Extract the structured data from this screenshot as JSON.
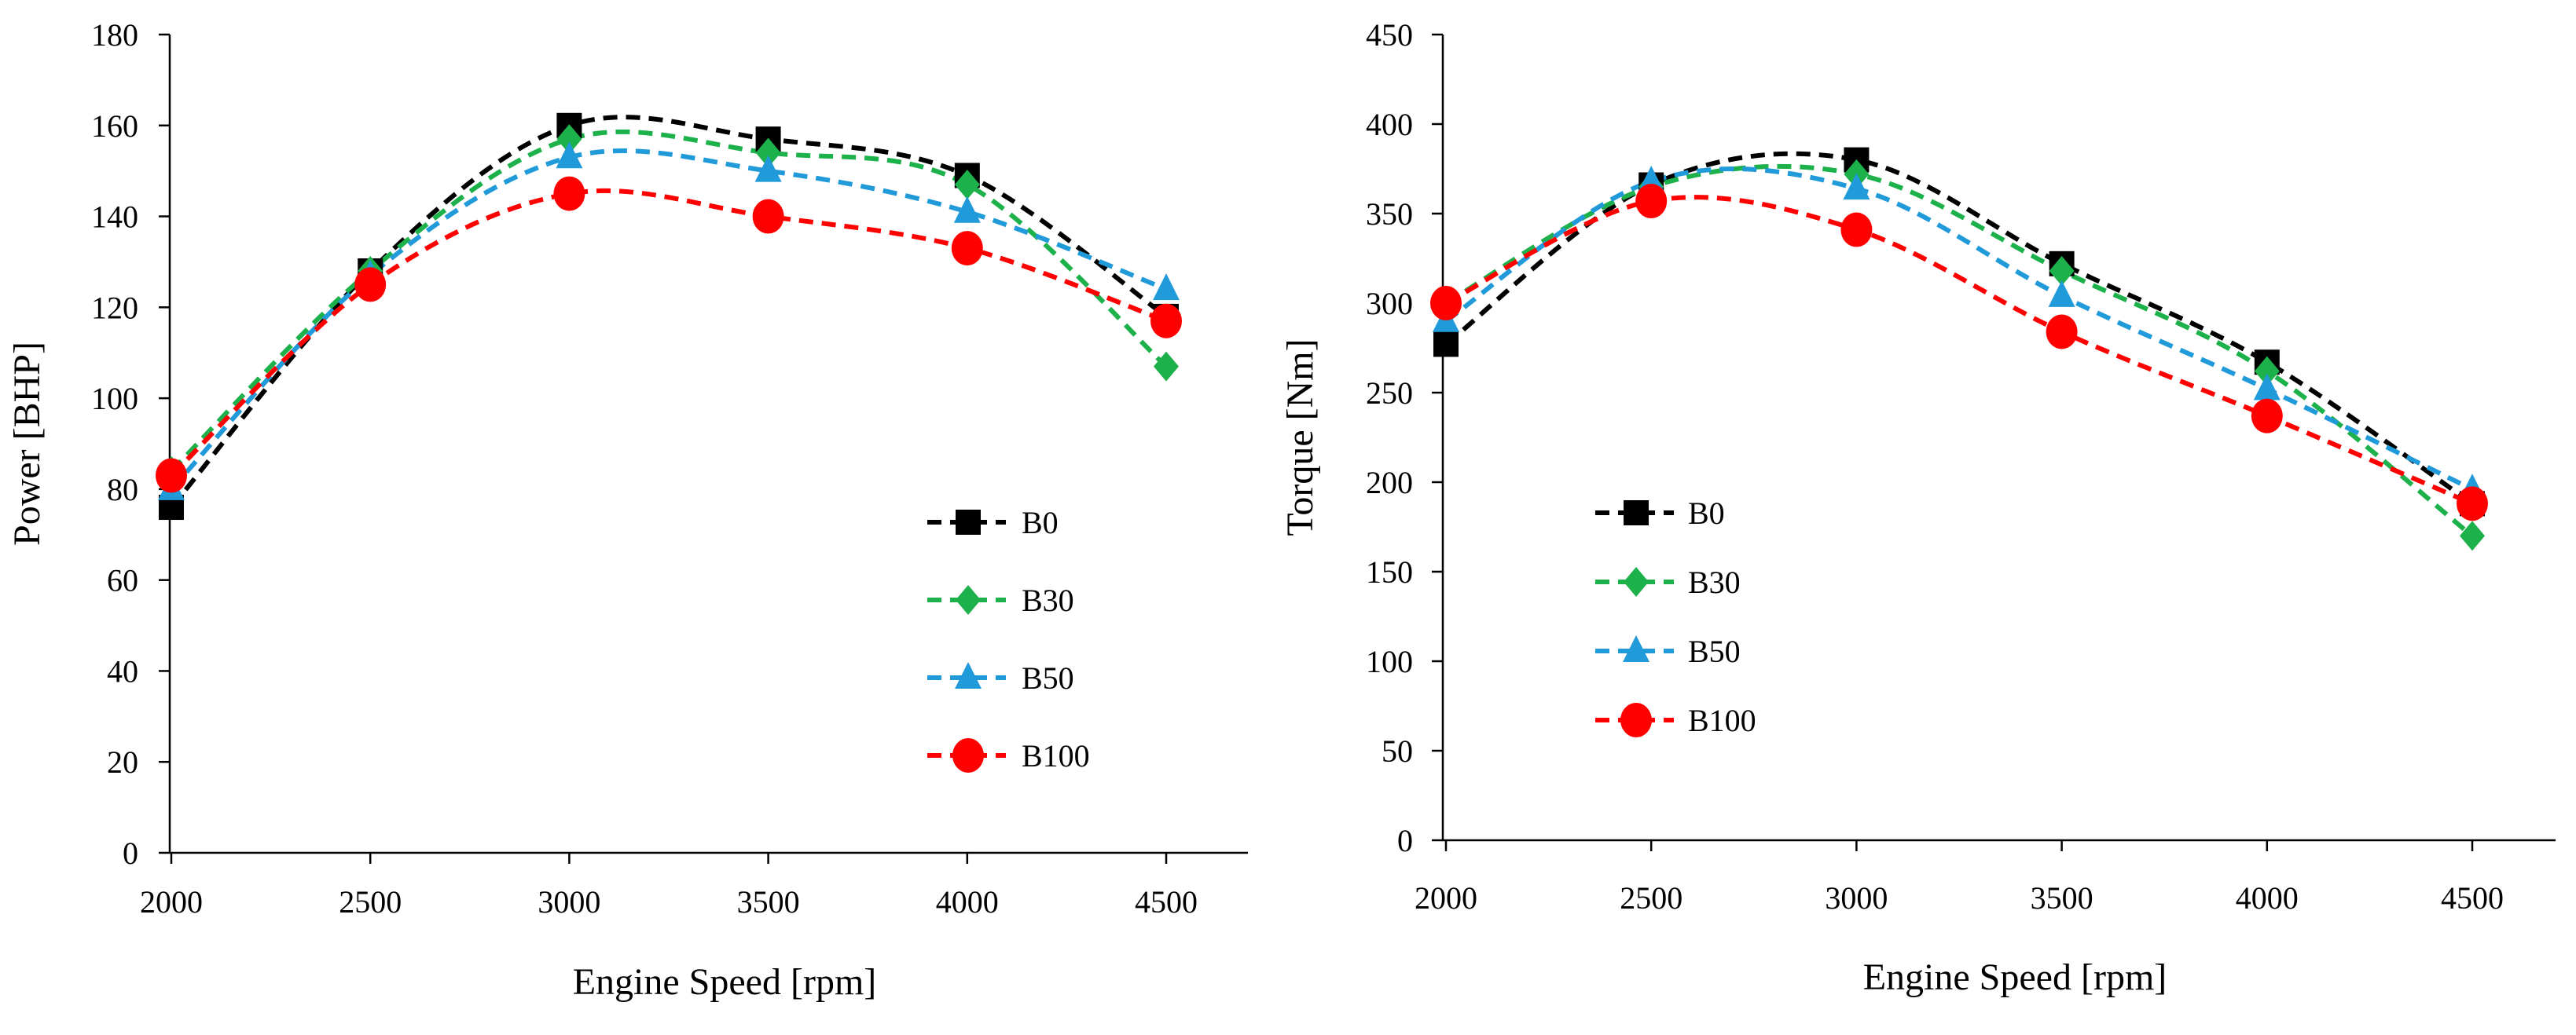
{
  "chart_data": [
    {
      "type": "line",
      "title": "",
      "xlabel": "Engine Speed [rpm]",
      "ylabel": "Power [BHP]",
      "x": [
        2000,
        2500,
        3000,
        3500,
        4000,
        4500
      ],
      "xticks": [
        2000,
        2500,
        3000,
        3500,
        4000,
        4500
      ],
      "xlim": [
        2000,
        4700
      ],
      "ylim": [
        0,
        180
      ],
      "yticks": [
        0,
        20,
        40,
        60,
        80,
        100,
        120,
        140,
        160,
        180
      ],
      "legend_position": "lower-right",
      "series": [
        {
          "name": "B0",
          "color": "#000000",
          "marker": "square",
          "values": [
            76,
            128,
            160,
            157,
            149,
            118
          ]
        },
        {
          "name": "B30",
          "color": "#1db14b",
          "marker": "diamond",
          "values": [
            84,
            128,
            157,
            154,
            147,
            107
          ]
        },
        {
          "name": "B50",
          "color": "#219ad9",
          "marker": "triangle",
          "values": [
            80,
            127,
            153,
            150,
            141,
            124
          ]
        },
        {
          "name": "B100",
          "color": "#ff0000",
          "marker": "circle",
          "values": [
            83,
            125,
            145,
            140,
            133,
            117
          ]
        }
      ]
    },
    {
      "type": "line",
      "title": "",
      "xlabel": "Engine Speed [rpm]",
      "ylabel": "Torque [Nm]",
      "x": [
        2000,
        2500,
        3000,
        3500,
        4000,
        4500
      ],
      "xticks": [
        2000,
        2500,
        3000,
        3500,
        4000,
        4500
      ],
      "xlim": [
        2000,
        4700
      ],
      "ylim": [
        0,
        450
      ],
      "yticks": [
        0,
        50,
        100,
        150,
        200,
        250,
        300,
        350,
        400,
        450
      ],
      "legend_position": "lower-left",
      "series": [
        {
          "name": "B0",
          "color": "#000000",
          "marker": "square",
          "values": [
            277,
            366,
            380,
            322,
            267,
            188
          ]
        },
        {
          "name": "B30",
          "color": "#1db14b",
          "marker": "diamond",
          "values": [
            300,
            365,
            372,
            318,
            262,
            170
          ]
        },
        {
          "name": "B50",
          "color": "#219ad9",
          "marker": "triangle",
          "values": [
            290,
            368,
            364,
            304,
            252,
            196
          ]
        },
        {
          "name": "B100",
          "color": "#ff0000",
          "marker": "circle",
          "values": [
            300,
            357,
            341,
            284,
            237,
            188
          ]
        }
      ]
    }
  ]
}
